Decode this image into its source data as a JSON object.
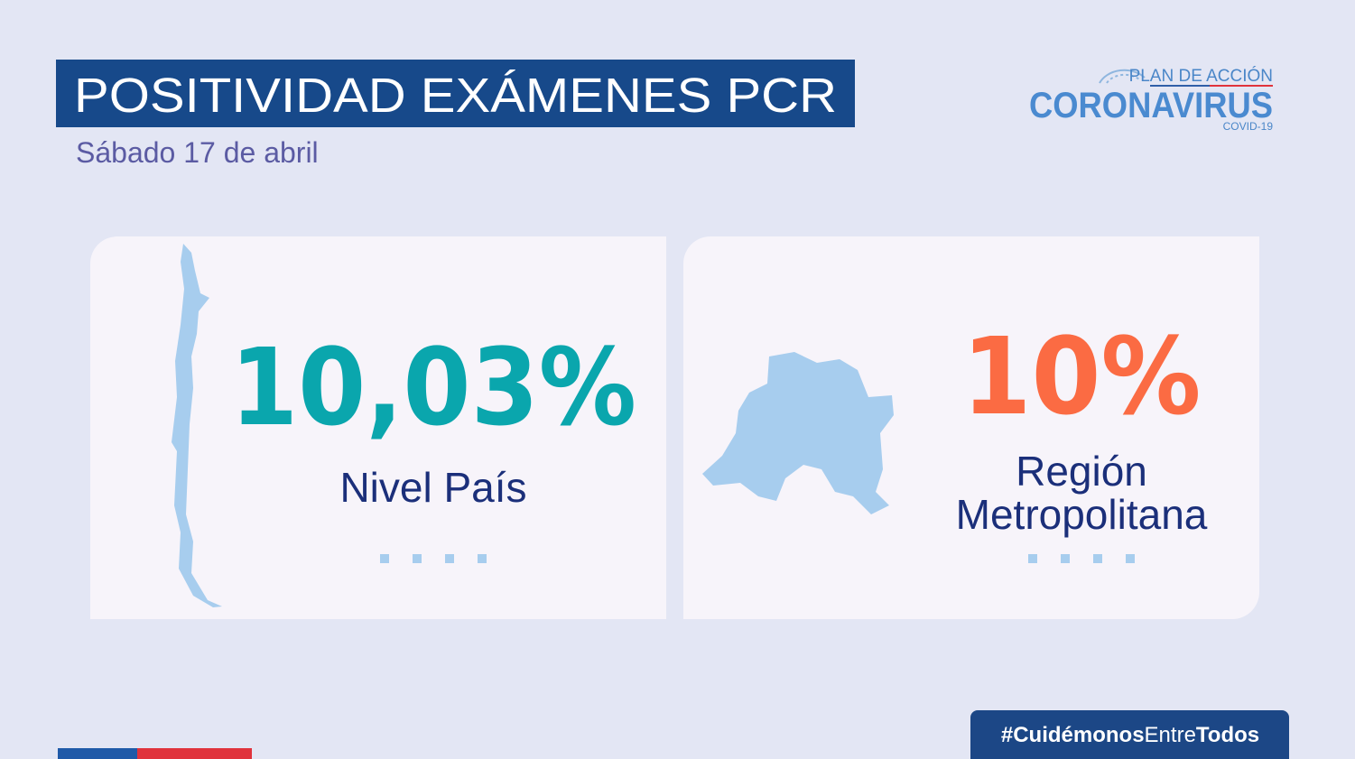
{
  "header": {
    "title": "POSITIVIDAD EXÁMENES PCR",
    "subtitle": "Sábado 17 de abril"
  },
  "logo": {
    "top": "PLAN DE ACCIÓN",
    "main": "CORONAVIRUS",
    "sub": "COVID-19"
  },
  "cards": [
    {
      "value": "10,03%",
      "label_lines": [
        "Nivel País"
      ]
    },
    {
      "value": "10%",
      "label_lines": [
        "Región",
        "Metropolitana"
      ]
    }
  ],
  "hashtag": [
    "#Cuidémonos",
    "Entre",
    "Todos"
  ]
}
